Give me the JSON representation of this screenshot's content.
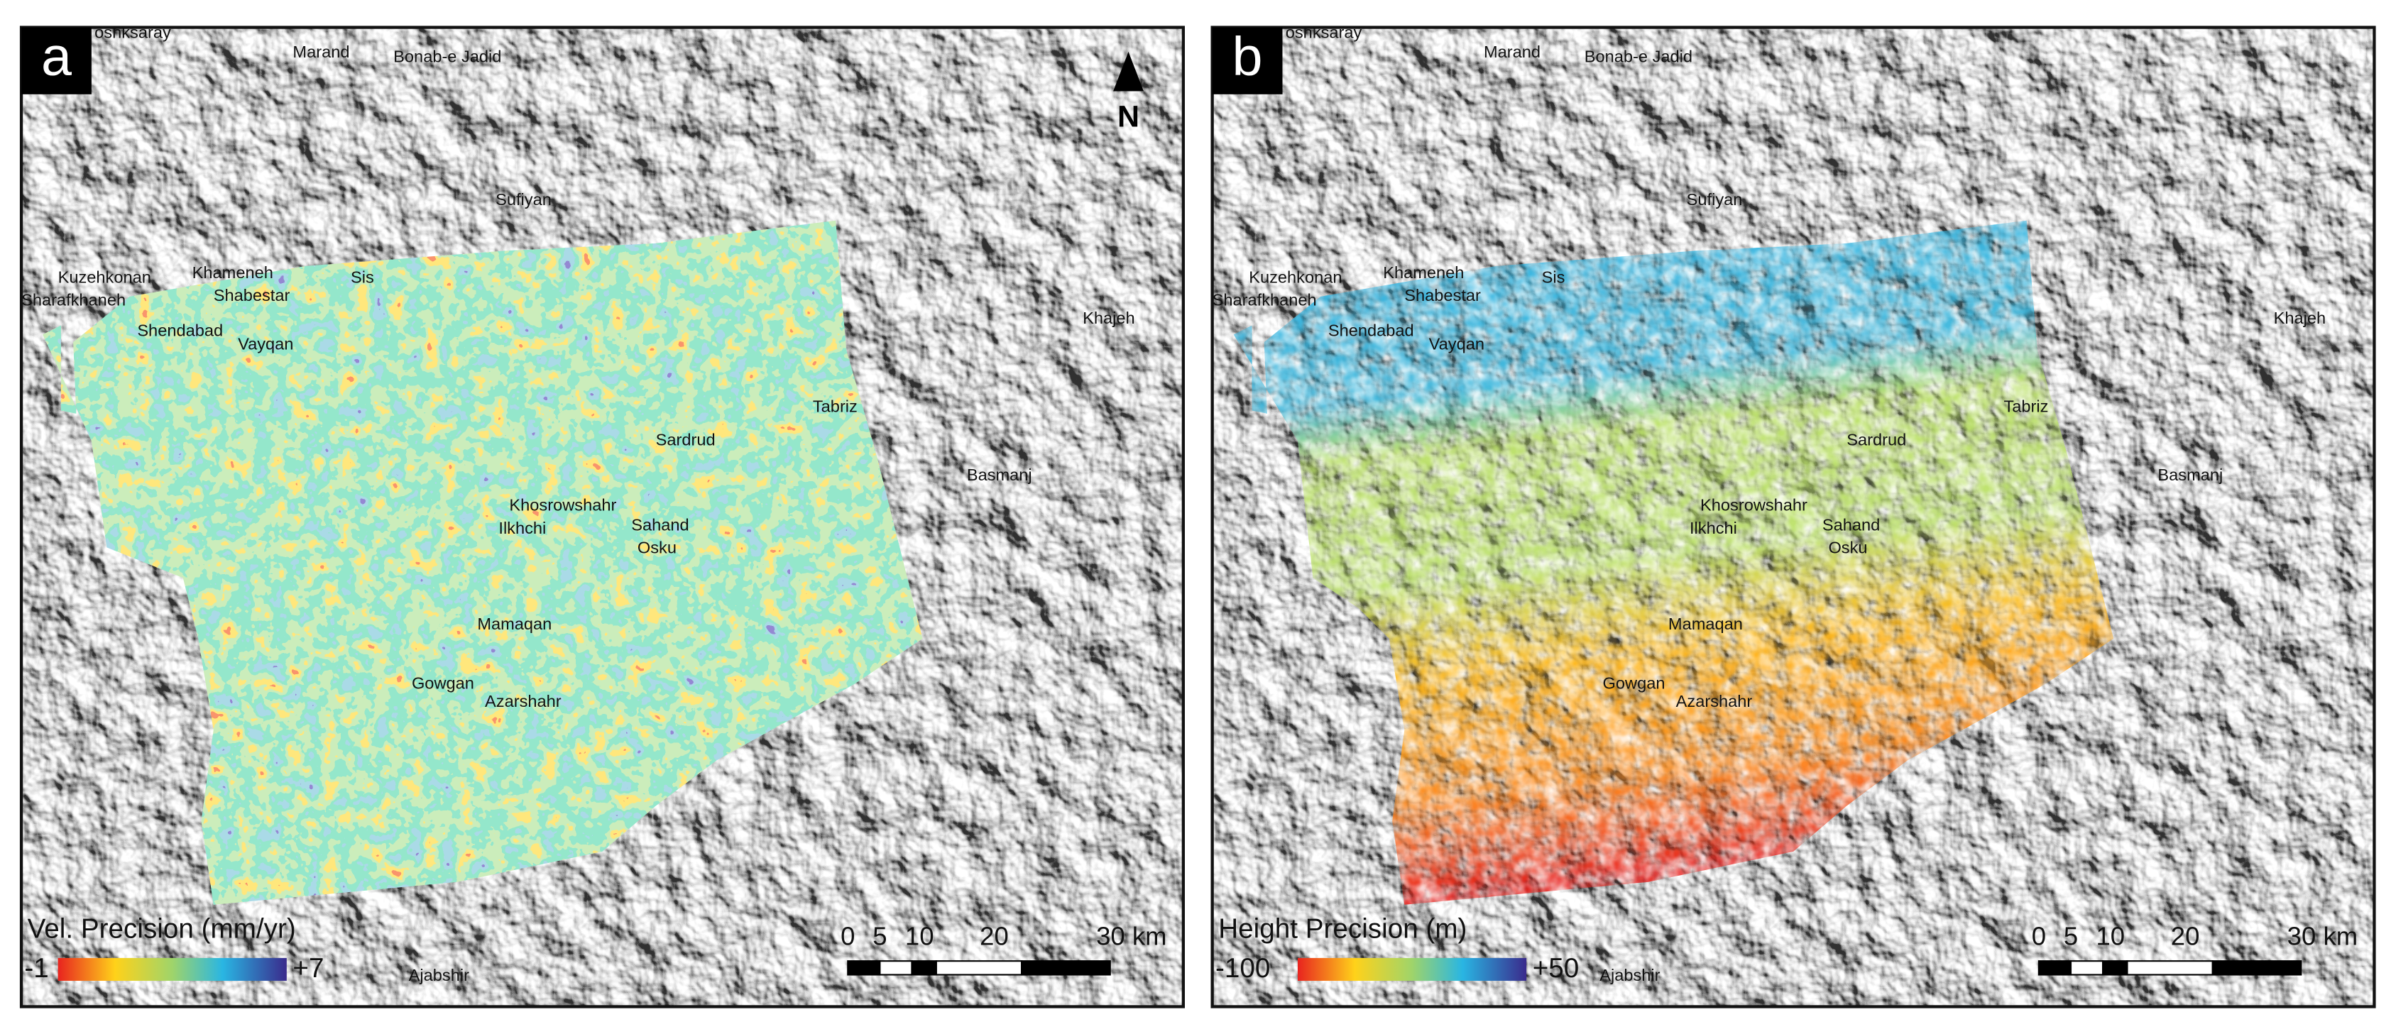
{
  "panels": [
    {
      "label": "a",
      "north": "N",
      "places": [
        "oshksaray",
        "Marand",
        "Bonab-e Jadid",
        "Sufiyan",
        "Kuzehkonan",
        "Khameneh",
        "Shabestar",
        "Sis",
        "Sharafkhaneh",
        "Shendabad",
        "Vayqan",
        "Khajeh",
        "Tabriz",
        "Sardrud",
        "Basmanj",
        "Khosrowshahr",
        "Sahand",
        "Ilkhchi",
        "Osku",
        "Mamaqan",
        "Gowgan",
        "Azarshahr",
        "Ajabshir"
      ],
      "legend": {
        "title": "Vel. Precision (mm/yr)",
        "min": "-1",
        "max": "+7"
      },
      "scale_bar": [
        "0",
        "5",
        "10",
        "20",
        "30 km"
      ]
    },
    {
      "label": "b",
      "places": [
        "oshksaray",
        "Marand",
        "Bonab-e Jadid",
        "Sufiyan",
        "Kuzehkonan",
        "Khameneh",
        "Shabestar",
        "Sis",
        "Sharafkhaneh",
        "Shendabad",
        "Vayqan",
        "Khajeh",
        "Tabriz",
        "Sardrud",
        "Basmanj",
        "Khosrowshahr",
        "Sahand",
        "Ilkhchi",
        "Osku",
        "Mamaqan",
        "Gowgan",
        "Azarshahr",
        "Ajabshir"
      ],
      "legend": {
        "title": "Height Precision (m)",
        "min": "-100",
        "max": "+50"
      },
      "scale_bar": [
        "0",
        "5",
        "10",
        "20",
        "30 km"
      ]
    }
  ]
}
